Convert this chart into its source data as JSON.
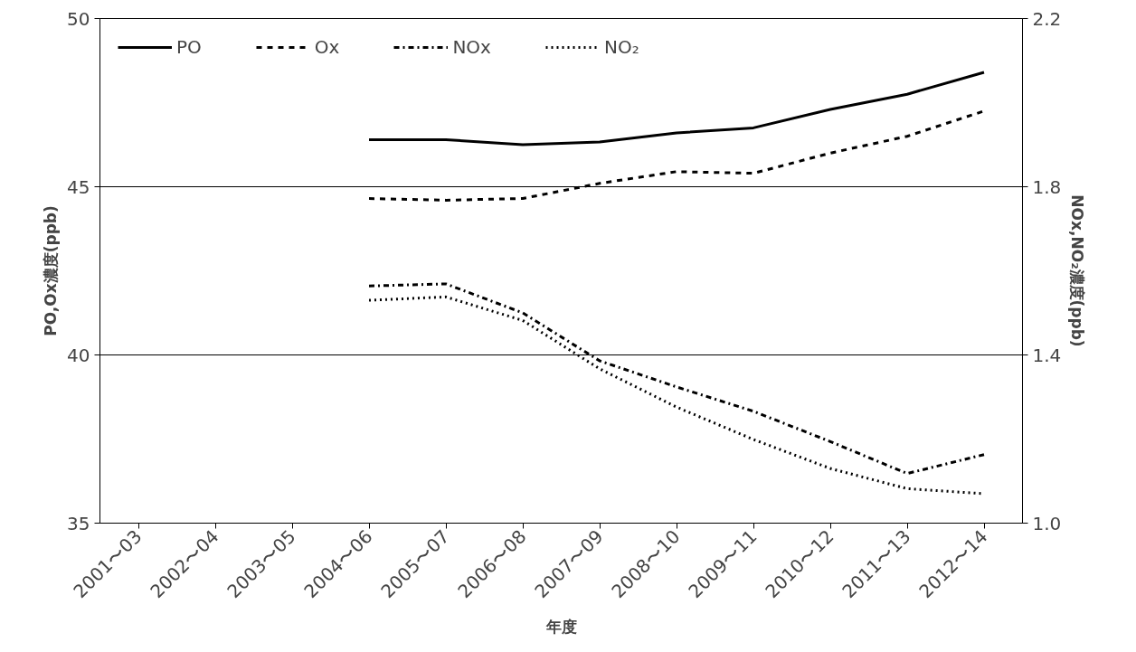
{
  "chart_data": {
    "type": "line",
    "xlabel": "年度",
    "ylabel": "PO,Ox濃度(ppb)",
    "y2label": "NOx,NO₂濃度(ppb)",
    "categories": [
      "2001〜03",
      "2002〜04",
      "2003〜05",
      "2004〜06",
      "2005〜07",
      "2006〜08",
      "2007〜09",
      "2008〜10",
      "2009〜11",
      "2010〜12",
      "2011〜13",
      "2012〜14"
    ],
    "ylim": [
      35,
      50
    ],
    "yticks": [
      35,
      40,
      45,
      50
    ],
    "y2lim": [
      1.0,
      2.2
    ],
    "y2ticks": [
      {
        "value": 1.0,
        "label": "1.0"
      },
      1.4,
      1.8,
      2.2
    ],
    "grid": "y",
    "legend": "top",
    "marker": "none",
    "series": [
      {
        "name": "PO",
        "color": "#000000",
        "line_style": "solid",
        "values": [
          null,
          null,
          null,
          46.4,
          46.4,
          46.25,
          46.33,
          46.6,
          46.75,
          47.3,
          47.75,
          48.4
        ]
      },
      {
        "name": "Ox",
        "color": "#000000",
        "line_style": "dashed",
        "values": [
          null,
          null,
          null,
          44.65,
          44.6,
          44.65,
          45.1,
          45.45,
          45.4,
          46.0,
          46.5,
          47.25
        ]
      },
      {
        "name": "NOx",
        "color": "#000000",
        "line_style": "dashdot",
        "axis": "y2",
        "values": [
          null,
          null,
          null,
          1.564,
          1.569,
          1.5,
          1.386,
          1.324,
          1.266,
          1.194,
          1.118,
          1.163
        ]
      },
      {
        "name": "NO₂",
        "color": "#000000",
        "line_style": "dotted",
        "axis": "y2",
        "values": [
          null,
          null,
          null,
          1.53,
          1.538,
          1.482,
          1.367,
          1.276,
          1.199,
          1.13,
          1.082,
          1.07
        ]
      }
    ]
  }
}
